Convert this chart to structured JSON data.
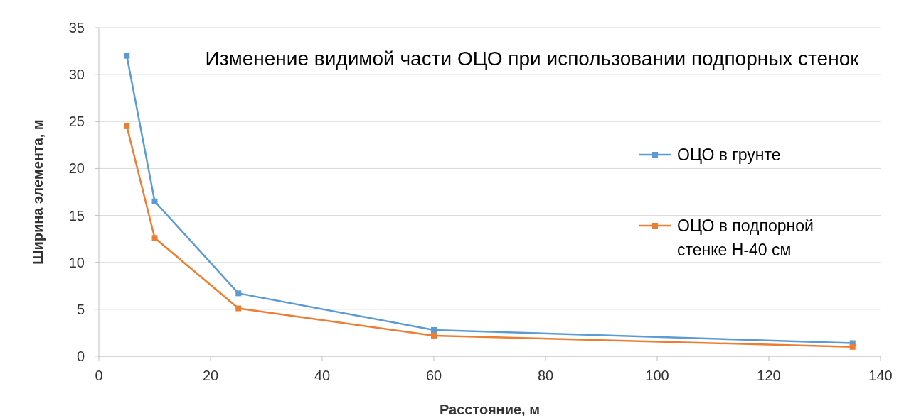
{
  "chart_data": {
    "type": "line",
    "title": "Изменение видимой части ОЦО при использовании подпорных стенок",
    "xlabel": "Расстояние, м",
    "ylabel": "Ширина элемента, м",
    "x": [
      5,
      10,
      25,
      60,
      135
    ],
    "series": [
      {
        "name": "ОЦО в грунте",
        "color": "#5b9bd5",
        "values": [
          32,
          16.5,
          6.7,
          2.8,
          1.4
        ]
      },
      {
        "name": "ОЦО в подпорной стенке Н-40 см",
        "color": "#ed7d31",
        "values": [
          24.5,
          12.6,
          5.1,
          2.2,
          1.0
        ]
      }
    ],
    "xlim": [
      0,
      140
    ],
    "xticks": [
      0,
      20,
      40,
      60,
      80,
      100,
      120,
      140
    ],
    "ylim": [
      0,
      35
    ],
    "yticks": [
      0,
      5,
      10,
      15,
      20,
      25,
      30,
      35
    ],
    "grid": "y",
    "legend": "right",
    "marker": "square",
    "line_style": "solid"
  }
}
